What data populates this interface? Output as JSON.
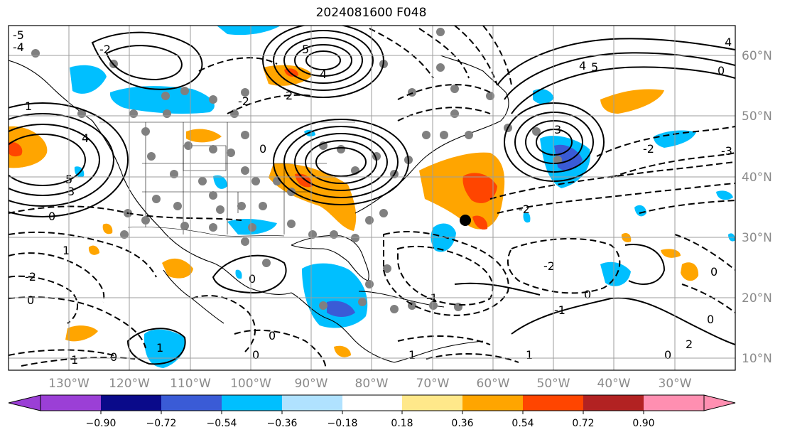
{
  "title": "2024081600 F048",
  "lon_labels": [
    "130°W",
    "120°W",
    "110°W",
    "100°W",
    "90°W",
    "80°W",
    "70°W",
    "60°W",
    "50°W",
    "40°W",
    "30°W"
  ],
  "lat_labels": [
    "60°N",
    "50°N",
    "40°N",
    "30°N",
    "20°N",
    "10°N"
  ],
  "colorbar": {
    "ticks": [
      "−0.90",
      "−0.72",
      "−0.54",
      "−0.36",
      "−0.18",
      "0.18",
      "0.36",
      "0.54",
      "0.72",
      "0.90"
    ],
    "colors": [
      "#9b3fd6",
      "#0a0a8a",
      "#3a5bd6",
      "#00bfff",
      "#b0e2ff",
      "#ffffff",
      "#ffe88a",
      "#ffa500",
      "#ff4500",
      "#b22222",
      "#ff8fb1"
    ]
  },
  "contour_labels": [
    "5",
    "4",
    "3",
    "2",
    "1",
    "0",
    "-1",
    "-2",
    "-3",
    "-4",
    "-5"
  ],
  "colors": {
    "positive_fill": "#ffa500",
    "negative_fill": "#00bfff",
    "grid": "#9e9e9e",
    "contour": "#000000"
  }
}
